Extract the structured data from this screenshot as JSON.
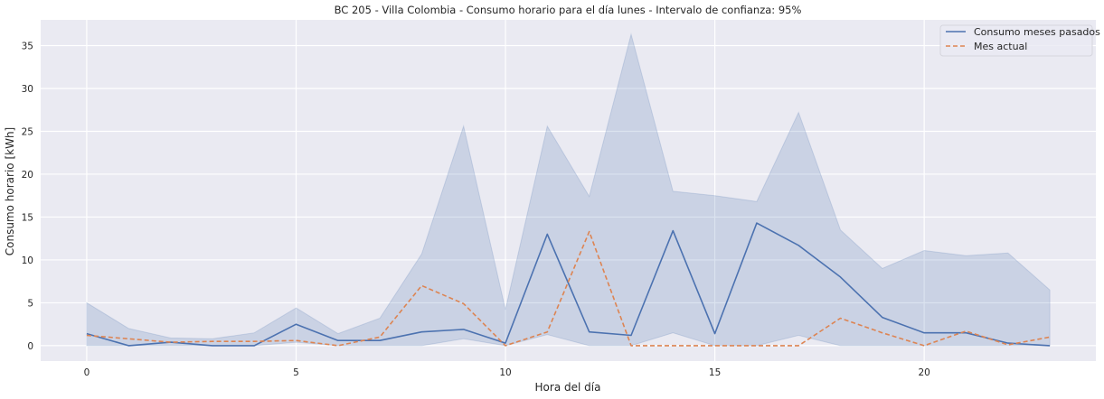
{
  "chart_data": {
    "type": "line",
    "title": "BC 205 - Villa Colombia - Consumo horario para el día lunes - Intervalo de confianza: 95%",
    "xlabel": "Hora del día",
    "ylabel": "Consumo horario [kWh]",
    "xlim": [
      -1.1,
      24.1
    ],
    "ylim": [
      -1.8,
      38.0
    ],
    "xticks": [
      0,
      5,
      10,
      15,
      20
    ],
    "yticks": [
      0,
      5,
      10,
      15,
      20,
      25,
      30,
      35
    ],
    "grid": true,
    "legend_position": "top-right",
    "x": [
      0,
      1,
      2,
      3,
      4,
      5,
      6,
      7,
      8,
      9,
      10,
      11,
      12,
      13,
      14,
      15,
      16,
      17,
      18,
      19,
      20,
      21,
      22,
      23
    ],
    "series": [
      {
        "name": "Consumo meses pasados",
        "color": "#4c72b0",
        "style": "solid",
        "values": [
          1.4,
          0.0,
          0.4,
          0.0,
          0.0,
          2.5,
          0.6,
          0.6,
          1.6,
          1.9,
          0.3,
          13.0,
          1.6,
          1.2,
          13.4,
          1.4,
          14.3,
          11.7,
          8.0,
          3.3,
          1.5,
          1.5,
          0.3,
          0.0
        ],
        "ci_lower": [
          0.0,
          0.0,
          0.0,
          0.0,
          0.0,
          0.4,
          0.0,
          0.0,
          0.0,
          0.8,
          0.0,
          1.3,
          0.0,
          0.0,
          1.5,
          0.0,
          0.0,
          1.2,
          0.0,
          0.0,
          0.0,
          0.0,
          0.0,
          0.0
        ],
        "ci_upper": [
          5.0,
          2.0,
          0.9,
          0.8,
          1.5,
          4.4,
          1.4,
          3.2,
          10.7,
          25.6,
          4.2,
          25.6,
          17.4,
          36.3,
          18.0,
          17.5,
          16.8,
          27.2,
          13.5,
          9.0,
          11.1,
          10.5,
          10.8,
          6.5
        ]
      },
      {
        "name": "Mes actual",
        "color": "#dd8452",
        "style": "dashed",
        "values": [
          1.2,
          0.8,
          0.4,
          0.5,
          0.5,
          0.6,
          0.0,
          1.0,
          7.0,
          4.9,
          0.0,
          1.6,
          13.3,
          0.0,
          0.0,
          0.0,
          0.0,
          0.0,
          3.2,
          1.5,
          0.0,
          1.7,
          0.1,
          1.0
        ]
      }
    ]
  }
}
